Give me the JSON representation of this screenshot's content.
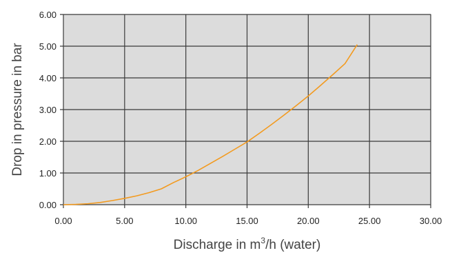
{
  "chart_data": {
    "type": "line",
    "title": "",
    "xlabel_parts": [
      "Discharge in m",
      "3",
      "/h (water)"
    ],
    "ylabel": "Drop in pressure in bar",
    "xlim": [
      0,
      30
    ],
    "ylim": [
      0,
      6
    ],
    "x_ticks": [
      "0.00",
      "5.00",
      "10.00",
      "15.00",
      "20.00",
      "25.00",
      "30.00"
    ],
    "y_ticks": [
      "0.00",
      "1.00",
      "2.00",
      "3.00",
      "4.00",
      "5.00",
      "6.00"
    ],
    "grid": true,
    "legend": "none",
    "series": [
      {
        "x": [
          0,
          1,
          2,
          3,
          4,
          5,
          6,
          7,
          8,
          9,
          10,
          11,
          12,
          13,
          14,
          15,
          16,
          17,
          18,
          19,
          20,
          21,
          22,
          23,
          24
        ],
        "y": [
          0.0,
          0.01,
          0.03,
          0.07,
          0.13,
          0.2,
          0.28,
          0.38,
          0.5,
          0.7,
          0.88,
          1.08,
          1.3,
          1.52,
          1.75,
          1.98,
          2.25,
          2.53,
          2.82,
          3.12,
          3.43,
          3.76,
          4.1,
          4.45,
          5.05
        ]
      }
    ],
    "colors": {
      "line": "#f39a1e",
      "plot_bg": "#dcdcdc",
      "grid": "#3a3a3a",
      "background": "#ffffff"
    }
  }
}
